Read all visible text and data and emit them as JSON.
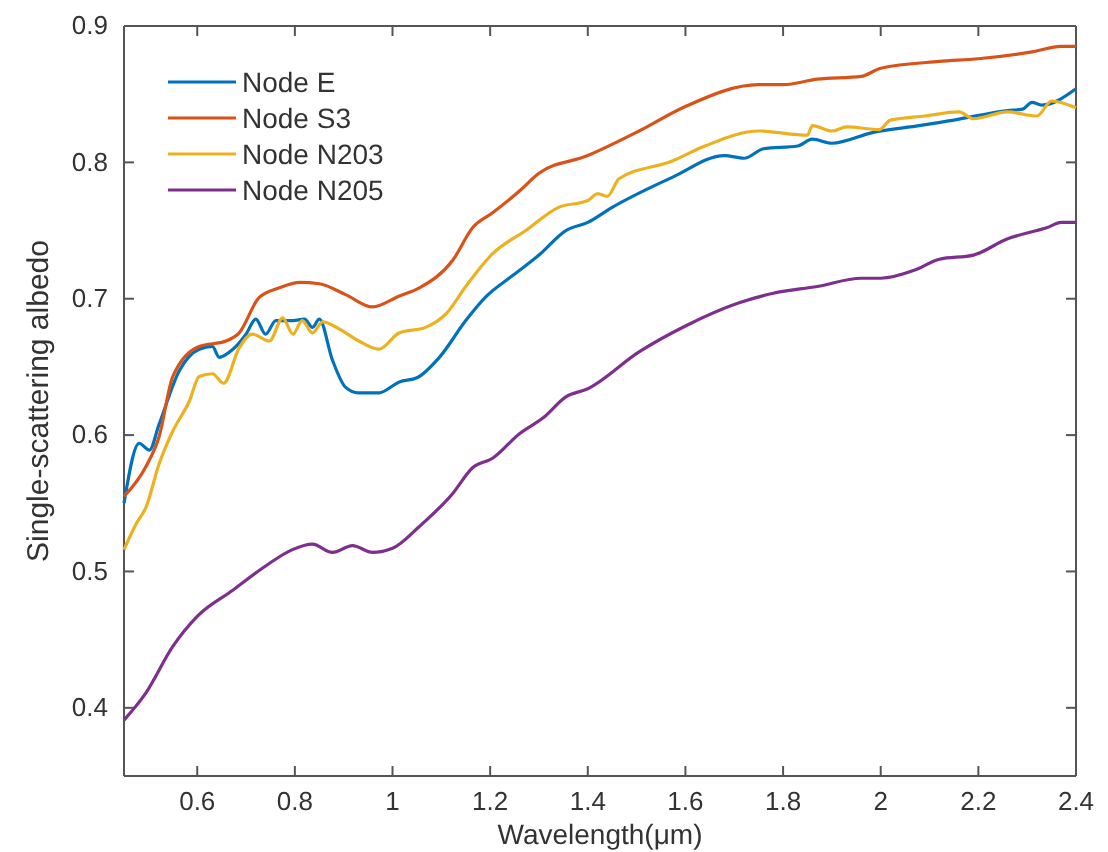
{
  "chart_data": {
    "type": "line",
    "xlabel": "Wavelength(μm)",
    "ylabel": "Single-scattering albedo",
    "xlim": [
      0.45,
      2.4
    ],
    "ylim": [
      0.35,
      0.9
    ],
    "xticks": [
      0.6,
      0.8,
      1,
      1.2,
      1.4,
      1.6,
      1.8,
      2,
      2.2,
      2.4
    ],
    "yticks": [
      0.4,
      0.5,
      0.6,
      0.7,
      0.8,
      0.9
    ],
    "grid": false,
    "legend": "top left",
    "marker": "none",
    "line_style": "solid",
    "series": [
      {
        "name": "Node E",
        "color": "#0072bd",
        "x": [
          0.45,
          0.481,
          0.502,
          0.522,
          0.563,
          0.604,
          0.631,
          0.645,
          0.67,
          0.7,
          0.72,
          0.74,
          0.761,
          0.796,
          0.82,
          0.836,
          0.85,
          0.877,
          0.904,
          0.93,
          0.972,
          1.014,
          1.05,
          1.096,
          1.15,
          1.19,
          1.246,
          1.3,
          1.355,
          1.4,
          1.45,
          1.573,
          1.68,
          1.72,
          1.76,
          1.83,
          1.86,
          1.9,
          1.985,
          2.06,
          2.15,
          2.26,
          2.29,
          2.31,
          2.33,
          2.4
        ],
        "values": [
          0.55,
          0.594,
          0.589,
          0.608,
          0.647,
          0.663,
          0.665,
          0.657,
          0.662,
          0.674,
          0.685,
          0.674,
          0.684,
          0.684,
          0.685,
          0.679,
          0.685,
          0.655,
          0.635,
          0.631,
          0.631,
          0.639,
          0.642,
          0.657,
          0.684,
          0.701,
          0.717,
          0.732,
          0.75,
          0.756,
          0.767,
          0.789,
          0.805,
          0.803,
          0.81,
          0.812,
          0.817,
          0.814,
          0.822,
          0.826,
          0.831,
          0.838,
          0.839,
          0.844,
          0.842,
          0.854
        ]
      },
      {
        "name": "Node S3",
        "color": "#d95319",
        "x": [
          0.45,
          0.495,
          0.522,
          0.55,
          0.604,
          0.659,
          0.686,
          0.727,
          0.768,
          0.81,
          0.85,
          0.904,
          0.959,
          1.014,
          1.055,
          1.123,
          1.164,
          1.205,
          1.26,
          1.3,
          1.4,
          1.505,
          1.6,
          1.75,
          1.8,
          1.87,
          1.96,
          2,
          2.12,
          2.2,
          2.31,
          2.37,
          2.4
        ],
        "values": [
          0.555,
          0.577,
          0.599,
          0.643,
          0.665,
          0.669,
          0.675,
          0.701,
          0.708,
          0.712,
          0.711,
          0.703,
          0.694,
          0.702,
          0.708,
          0.728,
          0.752,
          0.763,
          0.779,
          0.792,
          0.805,
          0.823,
          0.841,
          0.857,
          0.857,
          0.861,
          0.863,
          0.869,
          0.874,
          0.876,
          0.881,
          0.885,
          0.885
        ]
      },
      {
        "name": "Node N203",
        "color": "#edb120",
        "x": [
          0.45,
          0.475,
          0.495,
          0.522,
          0.55,
          0.584,
          0.604,
          0.631,
          0.654,
          0.686,
          0.713,
          0.748,
          0.775,
          0.796,
          0.815,
          0.836,
          0.857,
          0.89,
          0.931,
          0.972,
          1.014,
          1.068,
          1.11,
          1.15,
          1.205,
          1.273,
          1.34,
          1.4,
          1.42,
          1.44,
          1.464,
          1.573,
          1.64,
          1.75,
          1.85,
          1.86,
          1.9,
          1.93,
          1.997,
          2.02,
          2.09,
          2.16,
          2.19,
          2.26,
          2.32,
          2.35,
          2.4
        ],
        "values": [
          0.516,
          0.535,
          0.547,
          0.579,
          0.603,
          0.625,
          0.643,
          0.645,
          0.638,
          0.664,
          0.674,
          0.669,
          0.686,
          0.674,
          0.684,
          0.675,
          0.683,
          0.678,
          0.669,
          0.663,
          0.675,
          0.679,
          0.689,
          0.709,
          0.733,
          0.75,
          0.767,
          0.772,
          0.777,
          0.775,
          0.788,
          0.801,
          0.812,
          0.823,
          0.82,
          0.827,
          0.823,
          0.826,
          0.824,
          0.831,
          0.834,
          0.837,
          0.832,
          0.837,
          0.834,
          0.845,
          0.84
        ]
      },
      {
        "name": "Node N205",
        "color": "#7e2f8e",
        "x": [
          0.45,
          0.495,
          0.55,
          0.6,
          0.672,
          0.74,
          0.795,
          0.836,
          0.877,
          0.918,
          0.959,
          1,
          1.055,
          1.123,
          1.164,
          1.205,
          1.26,
          1.31,
          1.355,
          1.4,
          1.505,
          1.6,
          1.71,
          1.78,
          1.87,
          1.96,
          2,
          2.07,
          2.12,
          2.19,
          2.26,
          2.32,
          2.34,
          2.37,
          2.4
        ],
        "values": [
          0.391,
          0.411,
          0.445,
          0.467,
          0.486,
          0.504,
          0.516,
          0.52,
          0.514,
          0.519,
          0.514,
          0.517,
          0.533,
          0.557,
          0.576,
          0.583,
          0.601,
          0.613,
          0.628,
          0.634,
          0.661,
          0.68,
          0.697,
          0.704,
          0.709,
          0.715,
          0.715,
          0.721,
          0.729,
          0.732,
          0.744,
          0.75,
          0.752,
          0.756,
          0.756
        ]
      }
    ]
  }
}
